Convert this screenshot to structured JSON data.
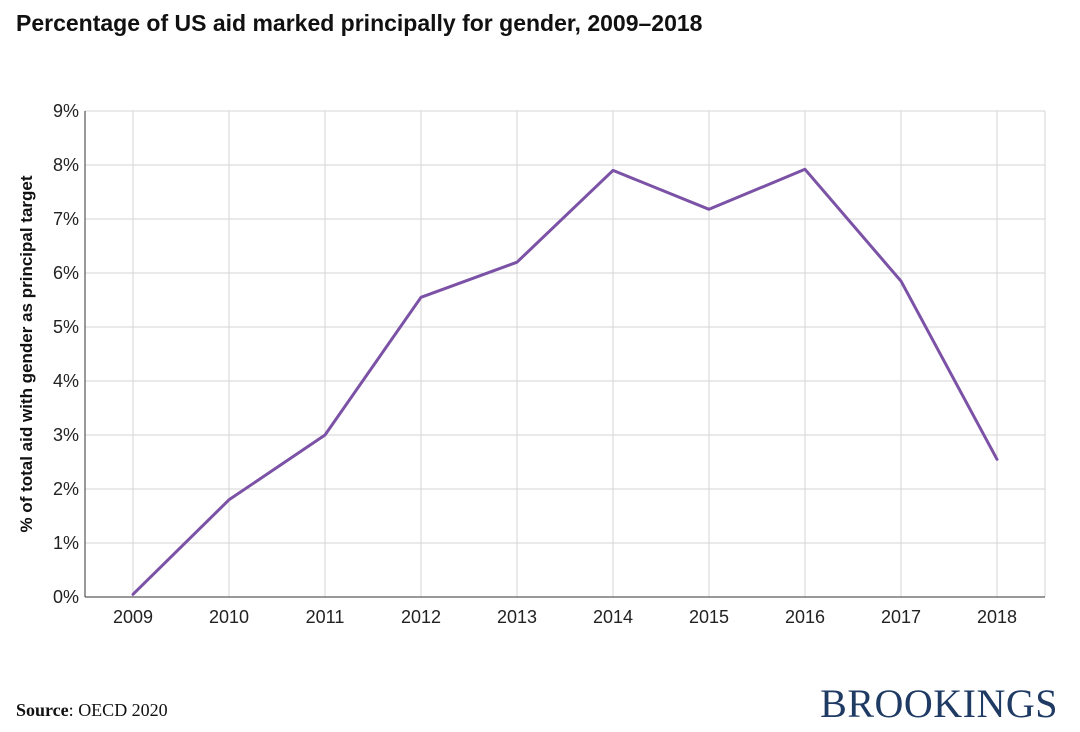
{
  "title": "Percentage of US aid marked principally for gender, 2009–2018",
  "source": {
    "label": "Source",
    "separator": ": ",
    "text": "OECD 2020"
  },
  "brand": "BROOKINGS",
  "colors": {
    "line": "#7b52a6",
    "grid": "#d4d4d4",
    "axis": "#333333",
    "brand": "#1f3b64"
  },
  "chart_data": {
    "type": "line",
    "title": "Percentage of US aid marked principally for gender, 2009–2018",
    "xlabel": "",
    "ylabel": "% of total aid with gender as principal target",
    "categories": [
      "2009",
      "2010",
      "2011",
      "2012",
      "2013",
      "2014",
      "2015",
      "2016",
      "2017",
      "2018"
    ],
    "series": [
      {
        "values": [
          0.05,
          1.8,
          3.0,
          5.55,
          6.2,
          7.9,
          7.18,
          7.92,
          5.85,
          2.55
        ]
      }
    ],
    "ylim": [
      0,
      9
    ],
    "yticks": [
      0,
      1,
      2,
      3,
      4,
      5,
      6,
      7,
      8,
      9
    ],
    "ytick_labels": [
      "0%",
      "1%",
      "2%",
      "3%",
      "4%",
      "5%",
      "6%",
      "7%",
      "8%",
      "9%"
    ],
    "grid": true,
    "legend": "none"
  }
}
